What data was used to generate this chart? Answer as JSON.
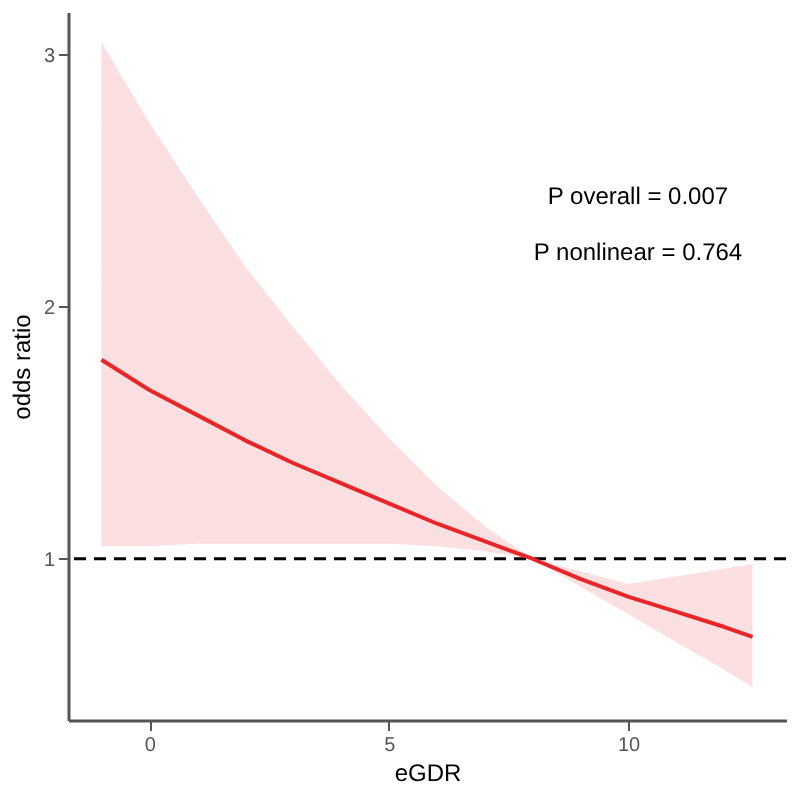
{
  "chart_data": {
    "type": "line",
    "xlabel": "eGDR",
    "ylabel": "odds ratio",
    "x": [
      -1,
      0,
      1,
      2,
      3,
      4,
      5,
      6,
      7,
      8,
      9,
      10,
      11,
      12,
      12.6
    ],
    "series": [
      {
        "color": "#e8262a",
        "values": [
          1.79,
          1.67,
          1.57,
          1.47,
          1.38,
          1.3,
          1.22,
          1.14,
          1.07,
          1.0,
          0.92,
          0.85,
          0.79,
          0.73,
          0.69
        ],
        "lower": [
          1.05,
          1.05,
          1.06,
          1.06,
          1.06,
          1.06,
          1.06,
          1.05,
          1.03,
          1.0,
          0.89,
          0.78,
          0.67,
          0.56,
          0.49
        ],
        "upper": [
          3.05,
          2.73,
          2.44,
          2.16,
          1.92,
          1.69,
          1.48,
          1.29,
          1.13,
          1.0,
          0.95,
          0.9,
          0.93,
          0.96,
          0.98
        ]
      }
    ],
    "xlim": [
      -1.7,
      13.3
    ],
    "xticks": [
      0,
      5,
      10
    ],
    "ylim": [
      0.36,
      3.17
    ],
    "yticks": [
      1,
      2,
      3
    ],
    "ref_lines": [
      {
        "axis": "y",
        "value": 1,
        "color": "#000000",
        "line_style": "dashed"
      }
    ],
    "annotations": [
      "P overall = 0.007",
      "P nonlinear = 0.764"
    ],
    "grid": false,
    "line_style": "solid",
    "marker": "none"
  }
}
